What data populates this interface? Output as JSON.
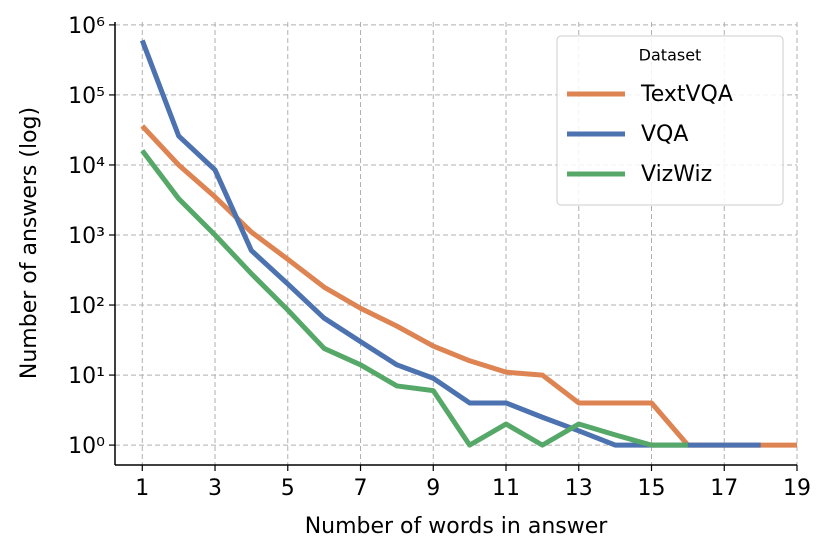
{
  "chart_data": {
    "type": "line",
    "x_label": "Number of words in answer",
    "y_label": "Number of answers (log)",
    "x": [
      1,
      2,
      3,
      4,
      5,
      6,
      7,
      8,
      9,
      10,
      11,
      12,
      13,
      14,
      15,
      16,
      17,
      18,
      19
    ],
    "series": [
      {
        "name": "TextVQA",
        "color": "#dd8452",
        "values": [
          36000,
          10000,
          3500,
          1100,
          450,
          180,
          90,
          50,
          26,
          16,
          11,
          10,
          4,
          4,
          4,
          1,
          1,
          1,
          1
        ]
      },
      {
        "name": "VQA",
        "color": "#4c72b0",
        "values": [
          600000,
          26000,
          8500,
          600,
          200,
          65,
          30,
          14,
          9,
          4,
          4,
          2.5,
          1.6,
          1,
          1,
          1,
          1,
          1,
          null
        ]
      },
      {
        "name": "VizWiz",
        "color": "#55a868",
        "values": [
          16000,
          3300,
          1000,
          280,
          85,
          24,
          14,
          7,
          6,
          1,
          2,
          1,
          2,
          1.4,
          1,
          1,
          null,
          null,
          null
        ]
      }
    ],
    "legend_title": "Dataset",
    "legend_position": "upper right",
    "xlim": [
      0.25,
      19
    ],
    "xticks": [
      1,
      3,
      5,
      7,
      9,
      11,
      13,
      15,
      17,
      19
    ],
    "ylim": [
      0.52,
      1100000
    ],
    "yticks": [
      {
        "value": 1,
        "label": "10⁰"
      },
      {
        "value": 10,
        "label": "10¹"
      },
      {
        "value": 100,
        "label": "10²"
      },
      {
        "value": 1000,
        "label": "10³"
      },
      {
        "value": 10000,
        "label": "10⁴"
      },
      {
        "value": 100000,
        "label": "10⁵"
      },
      {
        "value": 1000000,
        "label": "10⁶"
      }
    ],
    "y_scale": "log",
    "grid": true
  }
}
